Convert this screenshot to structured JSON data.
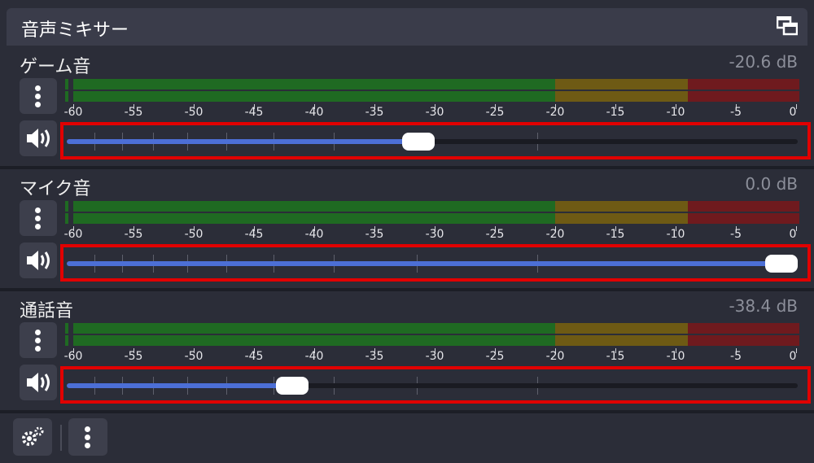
{
  "dock": {
    "title": "音声ミキサー",
    "float_icon": "float-window-icon"
  },
  "scale_labels": [
    "-60",
    "-55",
    "-50",
    "-45",
    "-40",
    "-35",
    "-30",
    "-25",
    "-20",
    "-15",
    "-10",
    "-5",
    "0"
  ],
  "channels": [
    {
      "name": "ゲーム音",
      "db": "-20.6 dB",
      "volume_fraction": 0.48
    },
    {
      "name": "マイク音",
      "db": "0.0 dB",
      "volume_fraction": 1.0
    },
    {
      "name": "通話音",
      "db": "-38.4 dB",
      "volume_fraction": 0.3
    }
  ],
  "colors": {
    "green": "#1f6a22",
    "yellow": "#6e5a14",
    "red": "#6f1a1e",
    "fill": "#4c6fd6",
    "highlight": "#e10000"
  },
  "icons": {
    "menu": "vertical-dots-icon",
    "speaker": "speaker-icon",
    "settings": "gear-icon"
  }
}
